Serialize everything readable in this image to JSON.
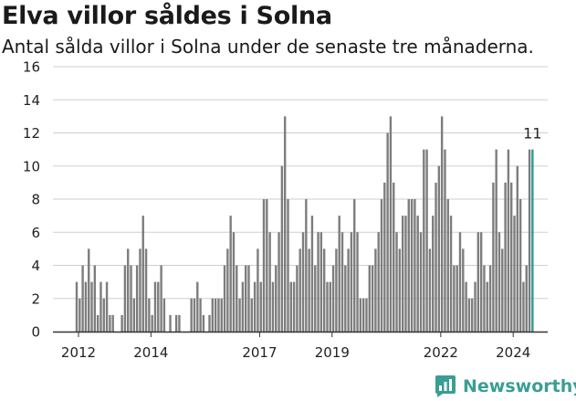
{
  "header": {
    "title": "Elva villor såldes i Solna",
    "subtitle": "Antal sålda villor i Solna under de senaste tre månaderna."
  },
  "logo": {
    "text": "Newsworthy",
    "icon": "bar-chart-logo-icon"
  },
  "colors": {
    "bar": "#7d7d7d",
    "highlight": "#2a9d8f",
    "axis": "#333333",
    "grid": "#cfcfcf"
  },
  "chart_data": {
    "type": "bar",
    "title": "Elva villor såldes i Solna",
    "subtitle": "Antal sålda villor i Solna under de senaste tre månaderna.",
    "xlabel": "",
    "ylabel": "",
    "ylim": [
      0,
      16
    ],
    "yticks": [
      0,
      2,
      4,
      6,
      8,
      10,
      12,
      14,
      16
    ],
    "xticks": [
      "2012",
      "2014",
      "2017",
      "2019",
      "2022",
      "2024"
    ],
    "grid": true,
    "legend": "none",
    "annotation": {
      "label": "11",
      "target": "last"
    },
    "series": [
      {
        "values": [
          3,
          2,
          4,
          3,
          5,
          3,
          4,
          1,
          3,
          2,
          3,
          1,
          1,
          0,
          0,
          1,
          4,
          5,
          4,
          2,
          4,
          5,
          7,
          5,
          2,
          1,
          3,
          3,
          4,
          2,
          0,
          1,
          0,
          1,
          1,
          0,
          0,
          0,
          2,
          2,
          3,
          2,
          1,
          0,
          1,
          2,
          2,
          2,
          2,
          4,
          5,
          7,
          6,
          4,
          2,
          3,
          4,
          4,
          2,
          3,
          5,
          3,
          8,
          8,
          6,
          3,
          4,
          6,
          10,
          13,
          8,
          3,
          3,
          4,
          5,
          6,
          8,
          5,
          7,
          4,
          6,
          6,
          5,
          3,
          3,
          4,
          5,
          7,
          6,
          4,
          5,
          6,
          8,
          6,
          2,
          2,
          2,
          4,
          4,
          5,
          6,
          8,
          9,
          12,
          13,
          9,
          6,
          5,
          7,
          7,
          8,
          8,
          8,
          7,
          6,
          11,
          11,
          5,
          7,
          9,
          10,
          13,
          11,
          8,
          7,
          4,
          4,
          6,
          5,
          3,
          2,
          2,
          3,
          6,
          6,
          4,
          3,
          4,
          9,
          11,
          6,
          5,
          9,
          11,
          9,
          7,
          10,
          8,
          3,
          4,
          11,
          11
        ]
      }
    ]
  }
}
